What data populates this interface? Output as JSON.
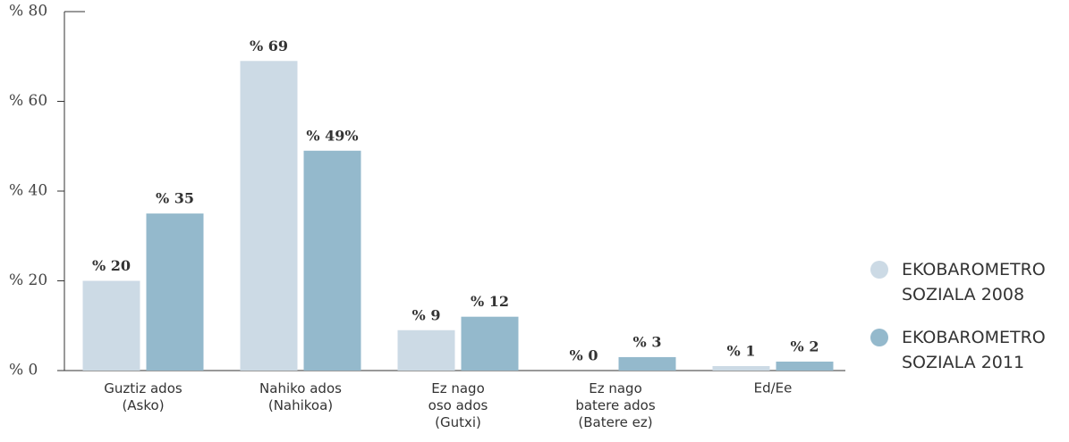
{
  "chart_data": {
    "type": "bar",
    "categories": [
      "Guztiz ados\n(Asko)",
      "Nahiko ados\n(Nahikoa)",
      "Ez nago\noso ados\n(Gutxi)",
      "Ez nago\nbatere ados\n(Batere ez)",
      "Ed/Ee"
    ],
    "series": [
      {
        "name": "EKOBAROMETRO\nSOZIALA 2008",
        "color": "#ccdae5",
        "values": [
          20,
          69,
          9,
          0,
          1
        ],
        "value_labels": [
          "% 20",
          "% 69",
          "% 9",
          "% 0",
          "% 1"
        ]
      },
      {
        "name": "EKOBAROMETRO\nSOZIALA 2011",
        "color": "#94b9cc",
        "values": [
          35,
          49,
          12,
          3,
          2
        ],
        "value_labels": [
          "% 35",
          "% 49%",
          "% 12",
          "% 3",
          "% 2"
        ]
      }
    ],
    "ylim": [
      0,
      80
    ],
    "yticks": [
      {
        "value": 0,
        "label": "% 0"
      },
      {
        "value": 20,
        "label": "% 20"
      },
      {
        "value": 40,
        "label": "% 40"
      },
      {
        "value": 60,
        "label": "% 60"
      },
      {
        "value": 80,
        "label": "% 80"
      }
    ],
    "legend": "right"
  }
}
